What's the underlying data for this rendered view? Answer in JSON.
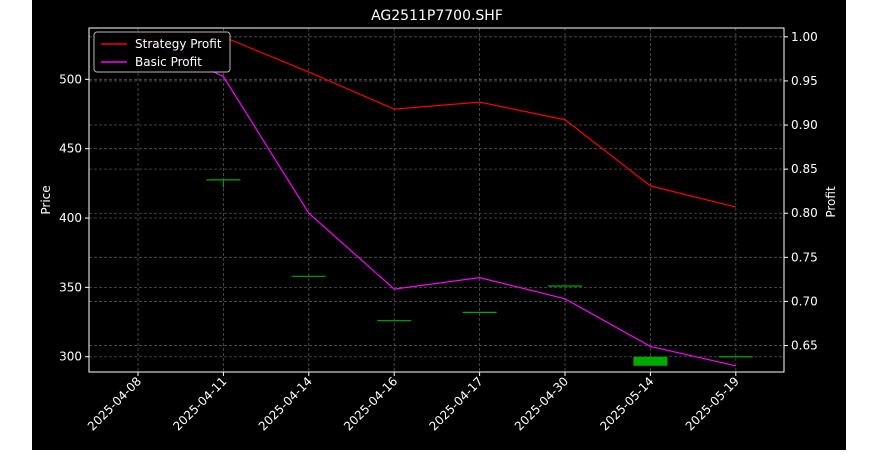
{
  "chart_data": {
    "type": "candlestick+line",
    "title": "AG2511P7700.SHF",
    "xlabel": "",
    "ylabel_left": "Price",
    "ylabel_right": "Profit",
    "categories": [
      "2025-04-08",
      "2025-04-11",
      "2025-04-14",
      "2025-04-16",
      "2025-04-17",
      "2025-04-30",
      "2025-05-14",
      "2025-05-19"
    ],
    "ylim_left": [
      289,
      537
    ],
    "yticks_left": [
      300,
      350,
      400,
      450,
      500
    ],
    "ylim_right": [
      0.62,
      1.01
    ],
    "yticks_right": [
      "0.65",
      "0.70",
      "0.75",
      "0.80",
      "0.85",
      "0.90",
      "0.95",
      "1.00"
    ],
    "candles": [
      {
        "date": "2025-04-08",
        "open": null,
        "high": null,
        "low": null,
        "close": null
      },
      {
        "date": "2025-04-11",
        "open": 427.5,
        "high": 427.5,
        "low": 422.0,
        "close": 427.5
      },
      {
        "date": "2025-04-14",
        "open": 358.0,
        "high": 358.0,
        "low": 358.0,
        "close": 358.0
      },
      {
        "date": "2025-04-16",
        "open": 326.0,
        "high": 326.0,
        "low": 326.0,
        "close": 326.0
      },
      {
        "date": "2025-04-17",
        "open": 332.0,
        "high": 332.0,
        "low": 332.0,
        "close": 332.0
      },
      {
        "date": "2025-04-30",
        "open": 351.0,
        "high": 351.0,
        "low": 351.0,
        "close": 351.0
      },
      {
        "date": "2025-05-14",
        "open": 293.5,
        "high": 300.0,
        "low": 293.5,
        "close": 300.0
      },
      {
        "date": "2025-05-19",
        "open": 300.0,
        "high": 300.0,
        "low": 300.0,
        "close": 300.0
      }
    ],
    "series": [
      {
        "name": "Strategy Profit",
        "color": "#ff0000",
        "axis": "right",
        "values": [
          1.0,
          1.0,
          0.96,
          0.918,
          0.926,
          0.906,
          0.831,
          0.807
        ]
      },
      {
        "name": "Basic Profit",
        "color": "#ff00ff",
        "axis": "right",
        "values": [
          1.0,
          0.955,
          0.8,
          0.714,
          0.727,
          0.703,
          0.649,
          0.627
        ]
      }
    ],
    "candle_up_color": "#00aa00",
    "candle_down_color": "#ff0000",
    "grid": true,
    "legend_position": "top-left",
    "background": "#000000",
    "foreground": "#ffffff"
  }
}
